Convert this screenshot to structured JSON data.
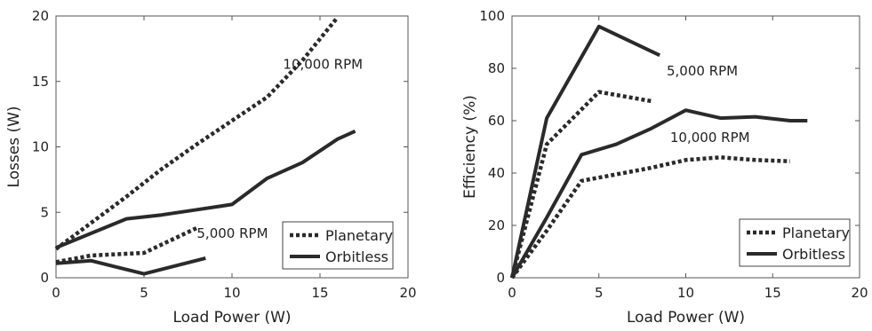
{
  "chart_data": [
    {
      "type": "line",
      "xlabel": "Load Power (W)",
      "ylabel": "Losses (W)",
      "xlim": [
        0,
        20
      ],
      "ylim": [
        0,
        20
      ],
      "xticks": [
        "0",
        "5",
        "10",
        "15",
        "20"
      ],
      "yticks": [
        "0",
        "5",
        "10",
        "15",
        "20"
      ],
      "legend": {
        "position": "bottom-right",
        "entries": [
          "Planetary",
          "Orbitless"
        ]
      },
      "annotations": [
        {
          "text": "10,000 RPM",
          "x": 12.9,
          "y": 16.3
        },
        {
          "text": "5,000 RPM",
          "x": 8.0,
          "y": 3.4
        }
      ],
      "series": [
        {
          "name": "Planetary",
          "style": "dotted",
          "label": "10,000 RPM",
          "x": [
            0,
            2,
            4,
            6,
            8,
            10,
            12,
            14,
            16
          ],
          "y": [
            2.2,
            4.2,
            6.2,
            8.3,
            10.2,
            12.0,
            13.8,
            16.6,
            19.9
          ]
        },
        {
          "name": "Orbitless",
          "style": "solid",
          "label": "10,000 RPM",
          "x": [
            0,
            2,
            4,
            6,
            8,
            10,
            12,
            14,
            16,
            17
          ],
          "y": [
            2.3,
            3.4,
            4.5,
            4.8,
            5.2,
            5.6,
            7.6,
            8.8,
            10.6,
            11.2
          ]
        },
        {
          "name": "Planetary",
          "style": "dotted",
          "label": "5,000 RPM",
          "x": [
            0,
            2,
            5,
            8
          ],
          "y": [
            1.2,
            1.7,
            1.9,
            3.8
          ]
        },
        {
          "name": "Orbitless",
          "style": "solid",
          "label": "5,000 RPM",
          "x": [
            0,
            2,
            5,
            8.5
          ],
          "y": [
            1.1,
            1.3,
            0.3,
            1.5
          ]
        }
      ]
    },
    {
      "type": "line",
      "xlabel": "Load Power (W)",
      "ylabel": "Efficiency (%)",
      "xlim": [
        0,
        20
      ],
      "ylim": [
        0,
        100
      ],
      "xticks": [
        "0",
        "5",
        "10",
        "15",
        "20"
      ],
      "yticks": [
        "0",
        "20",
        "40",
        "60",
        "80",
        "100"
      ],
      "legend": {
        "position": "bottom-right",
        "entries": [
          "Planetary",
          "Orbitless"
        ]
      },
      "annotations": [
        {
          "text": "5,000 RPM",
          "x": 8.9,
          "y": 79
        },
        {
          "text": "10,000 RPM",
          "x": 9.1,
          "y": 53.5
        }
      ],
      "series": [
        {
          "name": "Orbitless",
          "style": "solid",
          "label": "5,000 RPM",
          "x": [
            0,
            2,
            5,
            8.5
          ],
          "y": [
            0,
            61,
            96,
            85
          ]
        },
        {
          "name": "Planetary",
          "style": "dotted",
          "label": "5,000 RPM",
          "x": [
            0,
            2,
            5,
            8
          ],
          "y": [
            0,
            51,
            71,
            67.5
          ]
        },
        {
          "name": "Orbitless",
          "style": "solid",
          "label": "10,000 RPM",
          "x": [
            0,
            2,
            4,
            6,
            8,
            10,
            12,
            14,
            16,
            17
          ],
          "y": [
            0,
            23,
            47,
            51,
            57,
            64,
            61,
            61.5,
            60,
            60
          ]
        },
        {
          "name": "Planetary",
          "style": "dotted",
          "label": "10,000 RPM",
          "x": [
            0,
            2,
            4,
            6,
            8,
            10,
            12,
            14,
            16
          ],
          "y": [
            0,
            18,
            37,
            39.5,
            42,
            45,
            46,
            45,
            44.5
          ]
        }
      ]
    }
  ]
}
